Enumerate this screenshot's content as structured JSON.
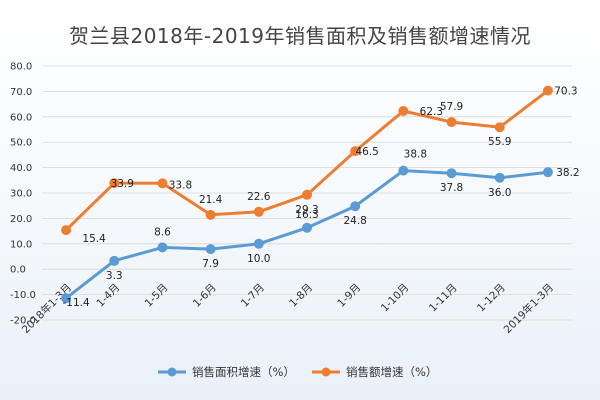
{
  "chart_data": {
    "type": "line",
    "title": "贺兰县2018年-2019年销售面积及销售额增速情况",
    "xlabel": "",
    "ylabel": "",
    "categories": [
      "2018年1-3月",
      "1-4月",
      "1-5月",
      "1-6月",
      "1-7月",
      "1-8月",
      "1-9月",
      "1-10月",
      "1-11月",
      "1-12月",
      "2019年1-3月"
    ],
    "ylim": [
      -20,
      80
    ],
    "yticks": [
      "-20.0",
      "-10.0",
      "0.0",
      "10.0",
      "20.0",
      "30.0",
      "40.0",
      "50.0",
      "60.0",
      "70.0",
      "80.0"
    ],
    "grid": true,
    "legend_position": "bottom",
    "series": [
      {
        "name": "销售面积增速（%）",
        "color": "#5b9bd5",
        "values": [
          -11.4,
          3.3,
          8.6,
          7.9,
          10.0,
          16.3,
          24.8,
          38.8,
          37.8,
          36.0,
          38.2
        ],
        "labels": [
          "-11.4",
          "3.3",
          "8.6",
          "7.9",
          "10.0",
          "16.3",
          "24.8",
          "38.8",
          "37.8",
          "36.0",
          "38.2"
        ]
      },
      {
        "name": "销售额增速（%）",
        "color": "#ed7d31",
        "values": [
          15.4,
          33.9,
          33.8,
          21.4,
          22.6,
          29.3,
          46.5,
          62.3,
          57.9,
          55.9,
          70.3
        ],
        "labels": [
          "15.4",
          "33.9",
          "33.8",
          "21.4",
          "22.6",
          "29.3",
          "46.5",
          "62.3",
          "57.9",
          "55.9",
          "70.3"
        ]
      }
    ]
  }
}
